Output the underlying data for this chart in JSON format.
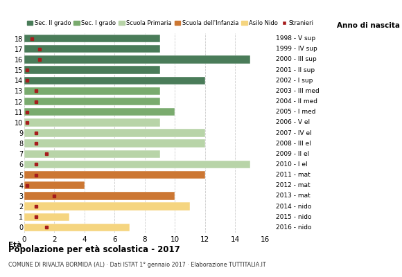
{
  "ages": [
    18,
    17,
    16,
    15,
    14,
    13,
    12,
    11,
    10,
    9,
    8,
    7,
    6,
    5,
    4,
    3,
    2,
    1,
    0
  ],
  "anno_nascita": [
    "1998 - V sup",
    "1999 - IV sup",
    "2000 - III sup",
    "2001 - II sup",
    "2002 - I sup",
    "2003 - III med",
    "2004 - II med",
    "2005 - I med",
    "2006 - V el",
    "2007 - IV el",
    "2008 - III el",
    "2009 - II el",
    "2010 - I el",
    "2011 - mat",
    "2012 - mat",
    "2013 - mat",
    "2014 - nido",
    "2015 - nido",
    "2016 - nido"
  ],
  "values": [
    9,
    9,
    15,
    9,
    12,
    9,
    9,
    10,
    9,
    12,
    12,
    9,
    15,
    12,
    4,
    10,
    11,
    3,
    7
  ],
  "foreigners": [
    0.5,
    1.0,
    1.0,
    0.2,
    0.2,
    0.8,
    0.8,
    0.2,
    0.2,
    0.8,
    0.8,
    1.5,
    0.8,
    0.8,
    0.2,
    2.0,
    0.8,
    0.8,
    1.5
  ],
  "bar_colors": [
    "#4a7c59",
    "#4a7c59",
    "#4a7c59",
    "#4a7c59",
    "#4a7c59",
    "#7aab6e",
    "#7aab6e",
    "#7aab6e",
    "#b8d4a8",
    "#b8d4a8",
    "#b8d4a8",
    "#b8d4a8",
    "#b8d4a8",
    "#cc7733",
    "#cc7733",
    "#cc7733",
    "#f5d580",
    "#f5d580",
    "#f5d580"
  ],
  "legend_labels": [
    "Sec. II grado",
    "Sec. I grado",
    "Scuola Primaria",
    "Scuola dell'Infanzia",
    "Asilo Nido",
    "Stranieri"
  ],
  "legend_colors": [
    "#4a7c59",
    "#7aab6e",
    "#b8d4a8",
    "#cc7733",
    "#f5d580",
    "#a61c1c"
  ],
  "title": "Popolazione per età scolastica - 2017",
  "subtitle": "COMUNE DI RIVALTA BORMIDA (AL) · Dati ISTAT 1° gennaio 2017 · Elaborazione TUTTITALIA.IT",
  "xlabel_eta": "Età",
  "xlabel_anno": "Anno di nascita",
  "xlim": [
    0,
    16
  ],
  "xticks": [
    0,
    2,
    4,
    6,
    8,
    10,
    12,
    14,
    16
  ],
  "foreigner_color": "#a61c1c",
  "bg_color": "#ffffff",
  "grid_color": "#cccccc"
}
